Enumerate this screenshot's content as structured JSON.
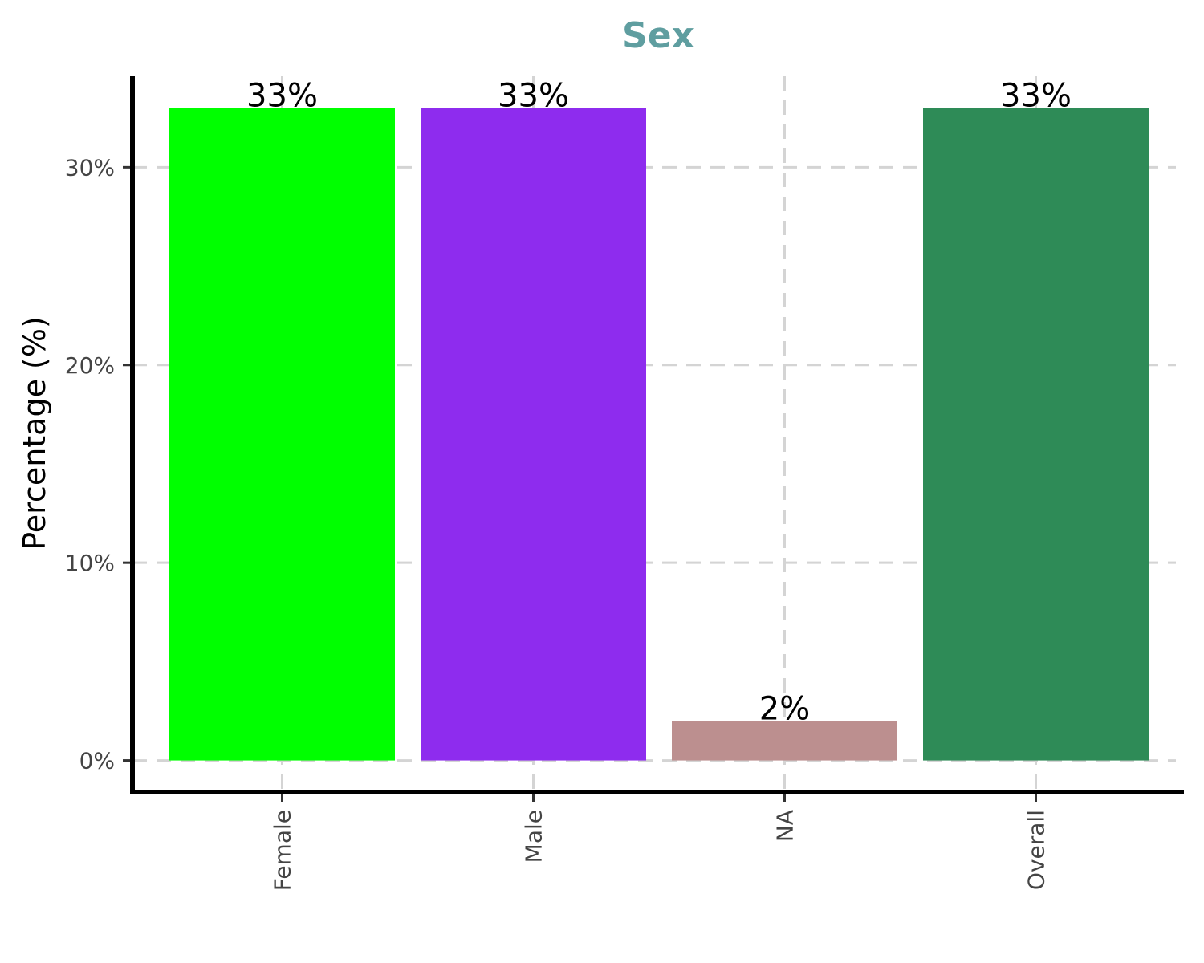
{
  "chart_data": {
    "type": "bar",
    "title": "Sex",
    "xlabel": "",
    "ylabel": "Percentage (%)",
    "categories": [
      "Female",
      "Male",
      "NA",
      "Overall"
    ],
    "values": [
      33,
      33,
      2,
      33
    ],
    "data_labels": [
      "33%",
      "33%",
      "2%",
      "33%"
    ],
    "colors": [
      "#00ff00",
      "#8e2cee",
      "#bc8f8f",
      "#2e8b57"
    ],
    "ylim": [
      -1.6,
      34.6
    ],
    "yticks": [
      0,
      10,
      20,
      30
    ],
    "ytick_labels": [
      "0%",
      "10%",
      "20%",
      "30%"
    ],
    "grid": true,
    "legend": "none"
  }
}
